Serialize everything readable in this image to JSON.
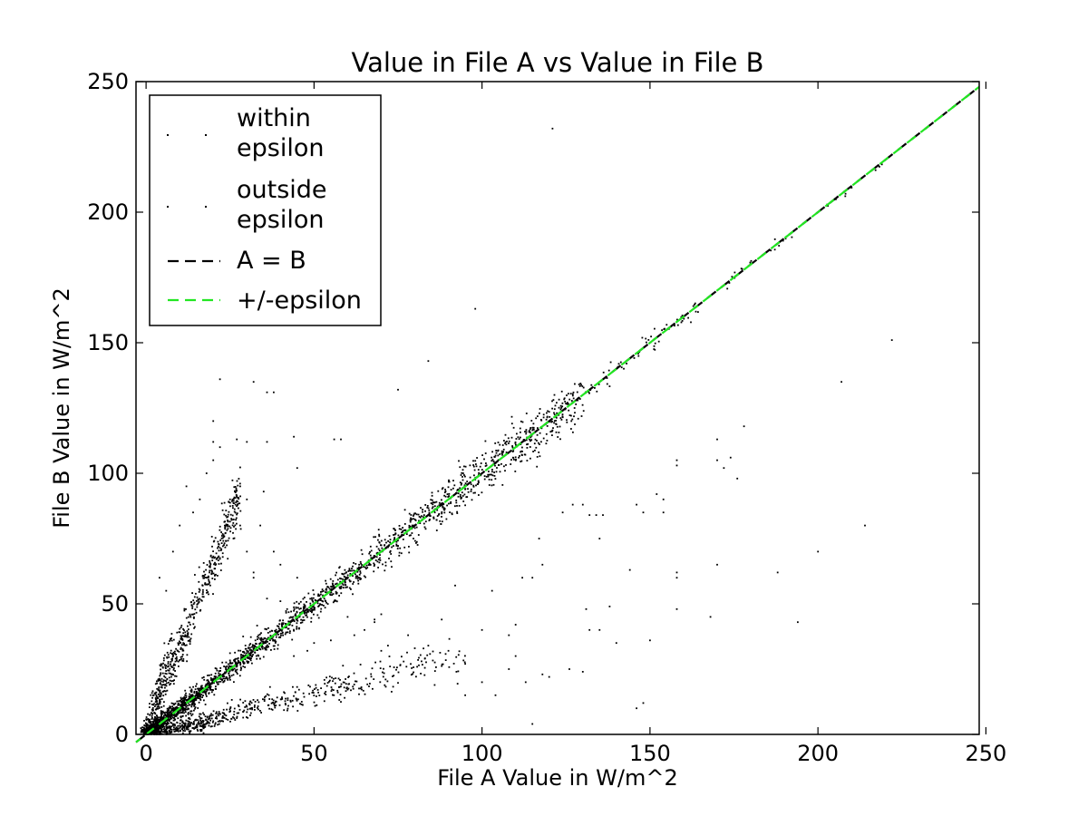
{
  "chart_data": {
    "type": "scatter",
    "title": "Value in File A vs Value in File B",
    "xlabel": "File A Value in W/m^2",
    "ylabel": "File B Value in W/m^2",
    "xlim": [
      -3,
      248
    ],
    "ylim": [
      0,
      250
    ],
    "xticks": [
      0,
      50,
      100,
      150,
      200,
      250
    ],
    "yticks": [
      0,
      50,
      100,
      150,
      200,
      250
    ],
    "xtick_labels": [
      "0",
      "50",
      "100",
      "150",
      "200",
      "250"
    ],
    "ytick_labels": [
      "0",
      "50",
      "100",
      "150",
      "200",
      "250"
    ],
    "grid": false,
    "legend": {
      "placement": "top-left",
      "entries": [
        {
          "label_lines": [
            "within",
            "epsilon"
          ],
          "marker": "dot",
          "color": "#000000"
        },
        {
          "label_lines": [
            "outside",
            "epsilon"
          ],
          "marker": "dot",
          "color": "#000000"
        },
        {
          "label_lines": [
            "A = B"
          ],
          "marker": "dashed-line",
          "color": "#000000"
        },
        {
          "label_lines": [
            "+/-epsilon"
          ],
          "marker": "dashed-line",
          "color": "#22e622"
        }
      ]
    },
    "lines": [
      {
        "name": "A = B",
        "style": "dashed",
        "color": "#000000",
        "x": [
          -3,
          248
        ],
        "y": [
          -3,
          248
        ]
      },
      {
        "name": "+/-epsilon",
        "style": "dashed",
        "color": "#22e622",
        "x": [
          -3,
          248
        ],
        "y": [
          -3,
          248
        ]
      }
    ],
    "clusters": [
      {
        "kind": "line",
        "x_range": [
          0,
          130
        ],
        "slope": 1.0,
        "spread": 1.5,
        "count": 2200,
        "weight": "decreasing"
      },
      {
        "kind": "line",
        "x_range": [
          130,
          165
        ],
        "slope": 1.0,
        "spread": 0.5,
        "count": 60
      },
      {
        "kind": "line",
        "x_range": [
          165,
          225
        ],
        "slope": 1.0,
        "spread": 0.3,
        "count": 30
      },
      {
        "kind": "line",
        "x_range": [
          0,
          28
        ],
        "slope": 3.3,
        "spread": 3.0,
        "count": 520
      },
      {
        "kind": "line",
        "x_range": [
          0,
          8
        ],
        "slope": 4.5,
        "spread": 3.0,
        "count": 120
      },
      {
        "kind": "line",
        "x_range": [
          0,
          95
        ],
        "slope": 0.32,
        "spread": 1.5,
        "count": 650,
        "weight": "decreasing"
      },
      {
        "kind": "line",
        "x_range": [
          0,
          20
        ],
        "slope": 0.2,
        "spread": 1.0,
        "count": 120
      }
    ],
    "outliers": [
      [
        121,
        232
      ],
      [
        98,
        163
      ],
      [
        84,
        143
      ],
      [
        75,
        132
      ],
      [
        36,
        131
      ],
      [
        38,
        131
      ],
      [
        32,
        135
      ],
      [
        22,
        136
      ],
      [
        20,
        120
      ],
      [
        20,
        112
      ],
      [
        22,
        110
      ],
      [
        27,
        113
      ],
      [
        30,
        112
      ],
      [
        36,
        112
      ],
      [
        44,
        114
      ],
      [
        56,
        113
      ],
      [
        58,
        113
      ],
      [
        45,
        102
      ],
      [
        12,
        95
      ],
      [
        18,
        100
      ],
      [
        20,
        105
      ],
      [
        35,
        93
      ],
      [
        30,
        90
      ],
      [
        28,
        80
      ],
      [
        34,
        80
      ],
      [
        32,
        60
      ],
      [
        40,
        65
      ],
      [
        45,
        60
      ],
      [
        36,
        52
      ],
      [
        40,
        51
      ],
      [
        42,
        48
      ],
      [
        52,
        47
      ],
      [
        60,
        45
      ],
      [
        68,
        44
      ],
      [
        70,
        46
      ],
      [
        68,
        43
      ],
      [
        88,
        44
      ],
      [
        92,
        57
      ],
      [
        100,
        40
      ],
      [
        108,
        38
      ],
      [
        110,
        42
      ],
      [
        112,
        60
      ],
      [
        103,
        55
      ],
      [
        118,
        65
      ],
      [
        117,
        75
      ],
      [
        124,
        85
      ],
      [
        127,
        88
      ],
      [
        130,
        88
      ],
      [
        132,
        84
      ],
      [
        134,
        84
      ],
      [
        136,
        84
      ],
      [
        135,
        75
      ],
      [
        131,
        48
      ],
      [
        132,
        40
      ],
      [
        135,
        40
      ],
      [
        118,
        23
      ],
      [
        120,
        22
      ],
      [
        126,
        25
      ],
      [
        130,
        24
      ],
      [
        138,
        49
      ],
      [
        140,
        35
      ],
      [
        144,
        63
      ],
      [
        146,
        88
      ],
      [
        148,
        85
      ],
      [
        152,
        92
      ],
      [
        154,
        90
      ],
      [
        154,
        85
      ],
      [
        148,
        12
      ],
      [
        146,
        10
      ],
      [
        150,
        36
      ],
      [
        158,
        103
      ],
      [
        158,
        105
      ],
      [
        158,
        62
      ],
      [
        158,
        60
      ],
      [
        158,
        48
      ],
      [
        170,
        113
      ],
      [
        170,
        105
      ],
      [
        172,
        102
      ],
      [
        174,
        106
      ],
      [
        178,
        118
      ],
      [
        176,
        98
      ],
      [
        170,
        65
      ],
      [
        168,
        45
      ],
      [
        188,
        62
      ],
      [
        194,
        43
      ],
      [
        200,
        70
      ],
      [
        207,
        135
      ],
      [
        214,
        80
      ],
      [
        222,
        151
      ],
      [
        113,
        20
      ],
      [
        115,
        4
      ],
      [
        104,
        15
      ],
      [
        100,
        20
      ],
      [
        95,
        27
      ],
      [
        95,
        15
      ],
      [
        115,
        60
      ],
      [
        84,
        34
      ],
      [
        90,
        32
      ],
      [
        108,
        25
      ],
      [
        110,
        30
      ],
      [
        65,
        40
      ],
      [
        62,
        38
      ],
      [
        55,
        36
      ],
      [
        50,
        35
      ],
      [
        48,
        32
      ],
      [
        44,
        30
      ],
      [
        70,
        32
      ],
      [
        72,
        34
      ],
      [
        78,
        38
      ],
      [
        80,
        33
      ],
      [
        82,
        28
      ],
      [
        28,
        95
      ],
      [
        25,
        90
      ],
      [
        8,
        70
      ],
      [
        10,
        80
      ],
      [
        14,
        85
      ],
      [
        16,
        90
      ],
      [
        26,
        75
      ],
      [
        30,
        70
      ],
      [
        32,
        62
      ],
      [
        38,
        70
      ],
      [
        6,
        55
      ],
      [
        4,
        60
      ]
    ]
  }
}
